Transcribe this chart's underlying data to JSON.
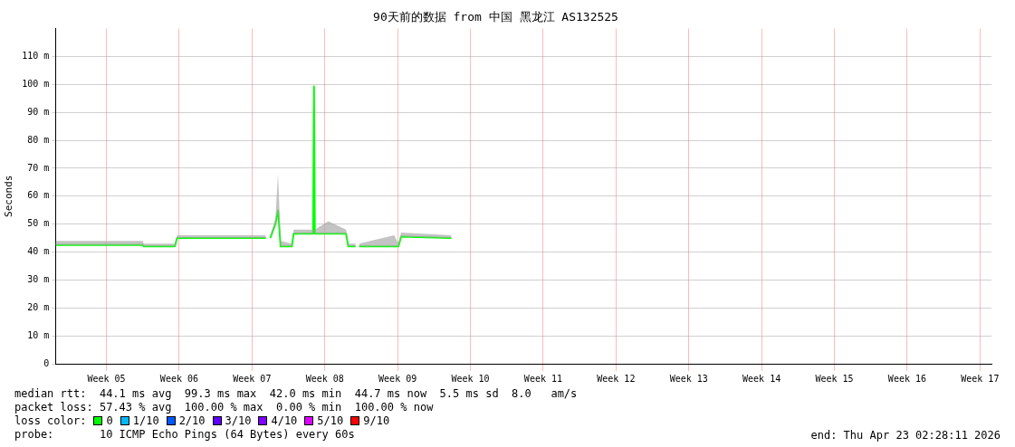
{
  "chart_data": {
    "type": "line",
    "title": "90天前的数据 from 中国 黑龙江 AS132525",
    "ylabel": "Seconds",
    "x": [
      "2026-01-23T03:00",
      "2026-01-31T12:00",
      "2026-01-31T14:00",
      "2026-02-03T14:00",
      "2026-02-03T19:00",
      "2026-02-12T08:00",
      "2026-02-12T10:00",
      "2026-02-12T18:00",
      "2026-02-13T06:00",
      "2026-02-13T12:00",
      "2026-02-13T18:00",
      "2026-02-14T20:00",
      "2026-02-15T00:00",
      "2026-02-16T21:00",
      "2026-02-16T23:00",
      "2026-02-17T01:00",
      "2026-02-18T08:00",
      "2026-02-20T01:00",
      "2026-02-20T06:00",
      "2026-02-20T23:00",
      "2026-02-21T02:00",
      "2026-02-21T07:00",
      "2026-02-24T16:00",
      "2026-02-25T02:00",
      "2026-02-25T08:00",
      "2026-03-02T04:00"
    ],
    "series": [
      {
        "name": "0",
        "color": "#00ff00",
        "values": [
          42.5,
          42.5,
          42,
          42,
          45,
          45,
          null,
          45,
          50,
          55,
          42,
          42,
          46.6,
          46.6,
          99.3,
          46.6,
          46.6,
          46.6,
          42,
          42,
          null,
          42,
          42,
          42,
          45.5,
          45
        ],
        "lower": [
          42.5,
          42.5,
          42,
          42,
          45,
          45,
          null,
          45,
          50,
          55,
          42,
          42,
          46.6,
          46.6,
          99.3,
          46.6,
          46.6,
          46.6,
          42,
          42,
          null,
          42,
          42,
          42,
          45.5,
          45
        ],
        "upper": [
          44,
          44,
          43,
          43,
          46,
          46,
          null,
          46,
          52,
          68,
          44,
          43,
          48,
          48,
          101,
          48,
          51,
          48,
          43,
          43,
          null,
          43,
          46,
          43,
          47,
          46
        ]
      },
      {
        "name": "1/10",
        "color": "#00b8ff",
        "values": [
          null,
          null,
          null,
          null,
          null,
          null,
          null,
          null,
          null,
          null,
          null,
          null,
          null,
          null,
          null,
          null,
          null,
          null,
          null,
          null,
          null,
          null,
          null,
          null,
          null,
          null
        ]
      },
      {
        "name": "2/10",
        "color": "#0059ff",
        "values": [
          null,
          null,
          null,
          null,
          null,
          null,
          null,
          null,
          null,
          null,
          null,
          null,
          null,
          null,
          null,
          null,
          null,
          null,
          null,
          null,
          null,
          null,
          null,
          null,
          null,
          null
        ]
      },
      {
        "name": "3/10",
        "color": "#5e00ff",
        "values": [
          null,
          null,
          null,
          null,
          null,
          null,
          null,
          null,
          null,
          null,
          null,
          null,
          null,
          null,
          null,
          null,
          null,
          null,
          null,
          null,
          null,
          null,
          null,
          null,
          null,
          null
        ]
      },
      {
        "name": "4/10",
        "color": "#7e00ff",
        "values": [
          null,
          null,
          null,
          null,
          null,
          null,
          null,
          null,
          null,
          null,
          null,
          null,
          null,
          null,
          null,
          null,
          null,
          null,
          null,
          null,
          null,
          null,
          null,
          null,
          null,
          null
        ]
      },
      {
        "name": "5/10",
        "color": "#dd00ff",
        "values": [
          null,
          null,
          null,
          null,
          null,
          null,
          null,
          null,
          null,
          null,
          null,
          null,
          null,
          null,
          null,
          null,
          null,
          null,
          null,
          null,
          null,
          null,
          null,
          null,
          null,
          null
        ]
      },
      {
        "name": "9/10",
        "color": "#ff0000",
        "values": [
          null,
          null,
          null,
          null,
          null,
          null,
          null,
          null,
          null,
          null,
          null,
          null,
          null,
          null,
          null,
          null,
          null,
          null,
          null,
          null,
          null,
          null,
          null,
          null,
          null,
          null
        ]
      }
    ],
    "xlim": [
      "2026-01-23T02:28",
      "2026-04-23T02:28"
    ],
    "xticks": [
      {
        "value": "2026-01-28",
        "label": "Week 05"
      },
      {
        "value": "2026-02-04",
        "label": "Week 06"
      },
      {
        "value": "2026-02-11",
        "label": "Week 07"
      },
      {
        "value": "2026-02-18",
        "label": "Week 08"
      },
      {
        "value": "2026-02-25",
        "label": "Week 09"
      },
      {
        "value": "2026-03-04",
        "label": "Week 10"
      },
      {
        "value": "2026-03-11",
        "label": "Week 11"
      },
      {
        "value": "2026-03-18",
        "label": "Week 12"
      },
      {
        "value": "2026-03-25",
        "label": "Week 13"
      },
      {
        "value": "2026-04-01",
        "label": "Week 14"
      },
      {
        "value": "2026-04-08",
        "label": "Week 15"
      },
      {
        "value": "2026-04-15",
        "label": "Week 16"
      },
      {
        "value": "2026-04-22",
        "label": "Week 17"
      }
    ],
    "ylim": [
      0,
      120
    ],
    "yticks": [
      0,
      {
        "value": 10,
        "label": "10 m"
      },
      {
        "value": 20,
        "label": "20 m"
      },
      {
        "value": 30,
        "label": "30 m"
      },
      {
        "value": 40,
        "label": "40 m"
      },
      {
        "value": 50,
        "label": "50 m"
      },
      {
        "value": 60,
        "label": "60 m"
      },
      {
        "value": 70,
        "label": "70 m"
      },
      {
        "value": 80,
        "label": "80 m"
      },
      {
        "value": 90,
        "label": "90 m"
      },
      {
        "value": 100,
        "label": "100 m"
      },
      {
        "value": 110,
        "label": "110 m"
      }
    ],
    "grid": true,
    "legend": "bottom left",
    "legend_title": "loss color:",
    "marker": "none",
    "line_style": "solid",
    "annotations": [
      "median rtt:  44.1 ms avg  99.3 ms max  42.0 ms min  44.7 ms now  5.5 ms sd  8.0   am/s",
      "packet loss: 57.43 % avg  100.00 % max  0.00 % min  100.00 % now",
      "probe:       10 ICMP Echo Pings (64 Bytes) every 60s",
      "end: Thu Apr 23 02:28:11 2026"
    ]
  }
}
